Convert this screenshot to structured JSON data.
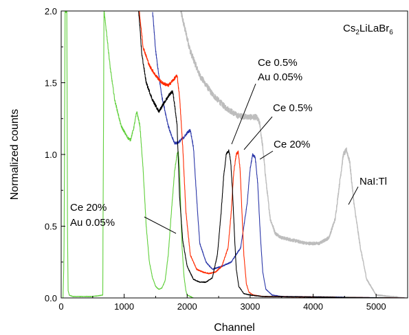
{
  "chart_data": {
    "type": "line",
    "title": "",
    "xlabel": "Channel",
    "ylabel": "Normalized counts",
    "xlim": [
      0,
      5500
    ],
    "ylim": [
      0,
      2.0
    ],
    "xticks": [
      0,
      1000,
      2000,
      3000,
      4000,
      5000
    ],
    "yticks": [
      0.0,
      0.5,
      1.0,
      1.5,
      2.0
    ],
    "ytick_labels": [
      "0.0",
      "0.5",
      "1.0",
      "1.5",
      "2.0"
    ],
    "grid": false,
    "colors": {
      "nai": "#bdbdbd",
      "ce05_au": "#000000",
      "ce05": "#ff2a00",
      "ce20": "#2a36a8",
      "ce20_au": "#5fcf3a"
    },
    "series": [
      {
        "key": "nai",
        "x": [
          1900,
          1950,
          2050,
          2200,
          2400,
          2600,
          2800,
          3000,
          3100,
          3150,
          3200,
          3260,
          3320,
          3400,
          3500,
          3700,
          3900,
          4100,
          4250,
          4350,
          4420,
          4480,
          4530,
          4580,
          4650,
          4750,
          4850,
          5000,
          5200,
          5500
        ],
        "y": [
          2.0,
          1.9,
          1.72,
          1.55,
          1.42,
          1.33,
          1.27,
          1.26,
          1.26,
          1.22,
          1.05,
          0.78,
          0.55,
          0.45,
          0.42,
          0.4,
          0.38,
          0.38,
          0.42,
          0.55,
          0.8,
          1.0,
          1.03,
          0.95,
          0.65,
          0.35,
          0.13,
          0.02,
          0.01,
          0.0
        ]
      },
      {
        "key": "ce05_au",
        "x": [
          1230,
          1280,
          1350,
          1450,
          1550,
          1650,
          1720,
          1770,
          1800,
          1840,
          1880,
          1930,
          2000,
          2100,
          2200,
          2300,
          2400,
          2480,
          2540,
          2580,
          2620,
          2660,
          2690,
          2720,
          2750,
          2780,
          2820,
          2900,
          3000,
          3200,
          5500
        ],
        "y": [
          2.0,
          1.7,
          1.5,
          1.38,
          1.3,
          1.37,
          1.42,
          1.44,
          1.35,
          1.2,
          0.7,
          0.4,
          0.22,
          0.13,
          0.11,
          0.11,
          0.14,
          0.3,
          0.6,
          0.85,
          1.0,
          1.03,
          0.96,
          0.75,
          0.45,
          0.2,
          0.08,
          0.03,
          0.02,
          0.01,
          0.0
        ]
      },
      {
        "key": "ce05",
        "x": [
          1240,
          1300,
          1400,
          1500,
          1600,
          1700,
          1780,
          1840,
          1880,
          1930,
          1980,
          2050,
          2150,
          2250,
          2350,
          2450,
          2550,
          2650,
          2700,
          2740,
          2780,
          2810,
          2840,
          2870,
          2900,
          2940,
          2980,
          3050,
          3200,
          5500
        ],
        "y": [
          2.0,
          1.75,
          1.62,
          1.55,
          1.5,
          1.48,
          1.52,
          1.55,
          1.4,
          1.05,
          0.6,
          0.3,
          0.2,
          0.18,
          0.17,
          0.18,
          0.22,
          0.35,
          0.6,
          0.88,
          1.0,
          1.02,
          0.9,
          0.6,
          0.3,
          0.1,
          0.04,
          0.02,
          0.01,
          0.0
        ]
      },
      {
        "key": "ce20",
        "x": [
          1450,
          1500,
          1550,
          1600,
          1650,
          1700,
          1750,
          1800,
          1850,
          1900,
          1950,
          2000,
          2050,
          2100,
          2150,
          2200,
          2300,
          2400,
          2550,
          2700,
          2850,
          2950,
          3000,
          3040,
          3080,
          3120,
          3160,
          3200,
          3250,
          3350,
          3500,
          5500
        ],
        "y": [
          2.0,
          1.72,
          1.55,
          1.4,
          1.3,
          1.2,
          1.13,
          1.08,
          1.08,
          1.1,
          1.12,
          1.15,
          1.17,
          1.05,
          0.7,
          0.38,
          0.25,
          0.2,
          0.22,
          0.25,
          0.35,
          0.65,
          0.9,
          1.0,
          0.98,
          0.8,
          0.45,
          0.18,
          0.06,
          0.02,
          0.01,
          0.0
        ]
      },
      {
        "key": "ce20_au",
        "x": [
          0,
          30,
          45,
          55,
          62,
          75,
          90,
          100,
          110,
          130,
          180,
          300,
          500,
          660,
          680,
          720,
          780,
          850,
          950,
          1050,
          1100,
          1150,
          1200,
          1250,
          1300,
          1350,
          1400,
          1450,
          1500,
          1550,
          1600,
          1650,
          1700,
          1750,
          1800,
          1840,
          1860,
          1880,
          1900,
          1920,
          1950,
          1980,
          2000,
          2050,
          2100,
          5500
        ],
        "y": [
          0,
          0,
          0.3,
          1.2,
          2.0,
          2.0,
          2.0,
          0.5,
          0.05,
          0.02,
          0.01,
          0.01,
          0.01,
          0.02,
          2.0,
          1.85,
          1.6,
          1.38,
          1.2,
          1.12,
          1.1,
          1.18,
          1.3,
          1.2,
          0.9,
          0.5,
          0.25,
          0.14,
          0.08,
          0.06,
          0.07,
          0.12,
          0.3,
          0.6,
          0.88,
          1.0,
          1.02,
          0.9,
          0.6,
          0.35,
          0.15,
          0.05,
          0.02,
          0.01,
          0.0,
          0.0
        ]
      }
    ],
    "annotations": [
      {
        "key": "title",
        "lines": [
          "Cs",
          "2",
          "LiLaBr",
          "6"
        ]
      },
      {
        "key": "ce05_au",
        "lines": [
          "Ce 0.5%",
          "Au 0.05%"
        ]
      },
      {
        "key": "ce05",
        "lines": [
          "Ce 0.5%"
        ]
      },
      {
        "key": "ce20",
        "lines": [
          "Ce 20%"
        ]
      },
      {
        "key": "nai",
        "lines": [
          "NaI:Tl"
        ]
      },
      {
        "key": "ce20_au",
        "lines": [
          "Ce 20%",
          "Au 0.05%"
        ]
      }
    ]
  }
}
